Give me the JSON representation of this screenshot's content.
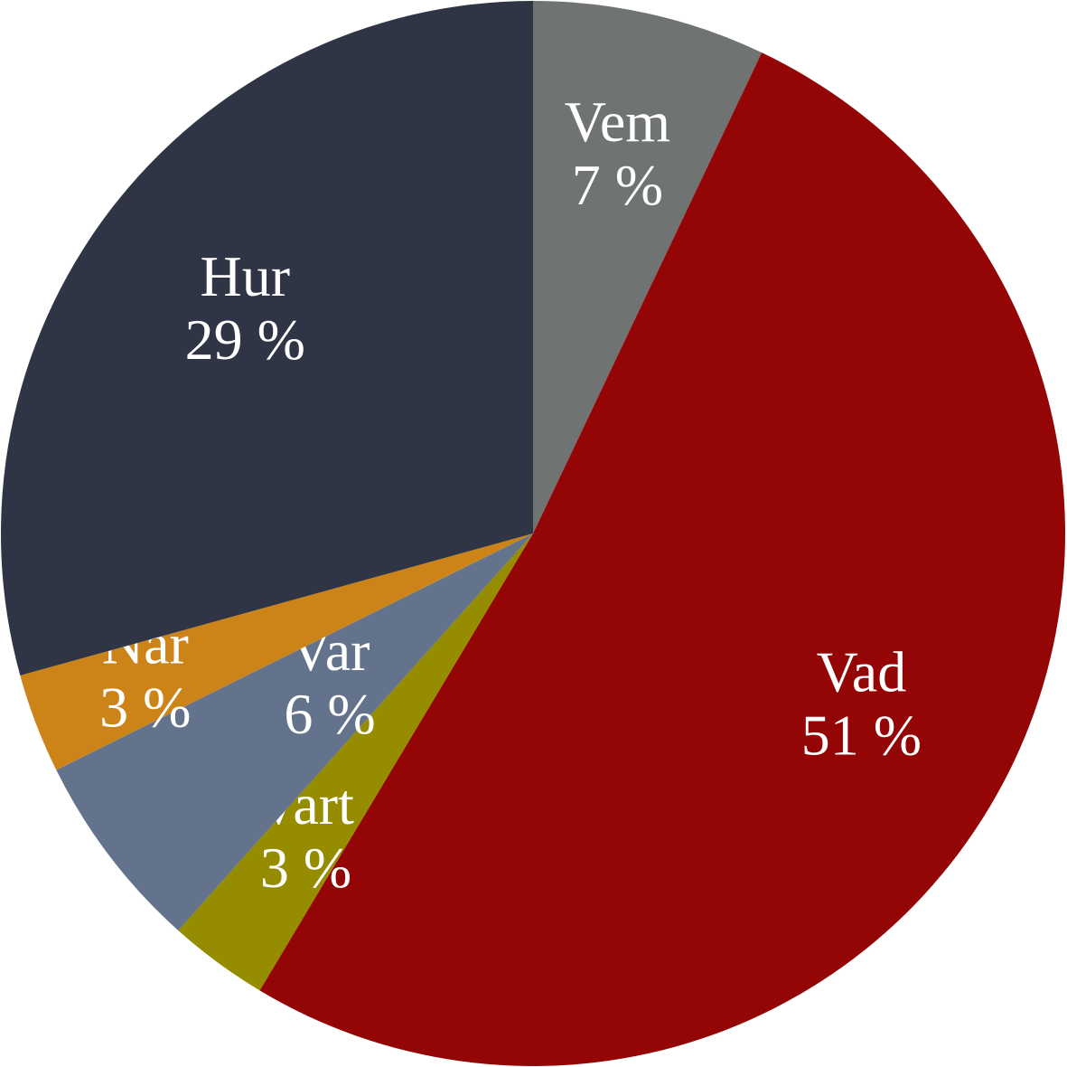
{
  "chart_data": {
    "type": "pie",
    "categories": [
      "Vem",
      "Vad",
      "Vart",
      "Var",
      "När",
      "Hur"
    ],
    "values": [
      7,
      51,
      3,
      6,
      3,
      29
    ],
    "value_labels": [
      "7 %",
      "51 %",
      "3 %",
      "6 %",
      "3 %",
      "29 %"
    ],
    "colors": [
      "#6f7472",
      "#940606",
      "#958c00",
      "#64738c",
      "#cc8419",
      "#2f3544"
    ]
  }
}
